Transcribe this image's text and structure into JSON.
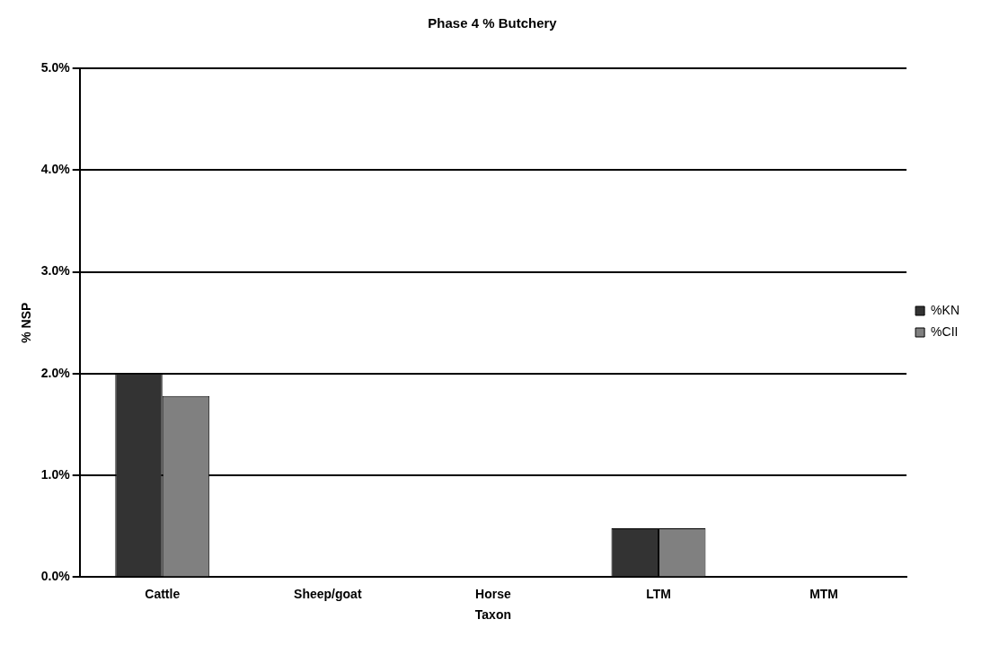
{
  "chart_data": {
    "type": "bar",
    "title": "Phase 4 % Butchery",
    "xlabel": "Taxon",
    "ylabel": "% NSP",
    "categories": [
      "Cattle",
      "Sheep/goat",
      "Horse",
      "LTM",
      "MTM"
    ],
    "series": [
      {
        "name": "%KN",
        "color": "#333333",
        "values": [
          2.0,
          0,
          0,
          0.48,
          0
        ]
      },
      {
        "name": "%CII",
        "color": "#808080",
        "values": [
          1.78,
          0,
          0,
          0.48,
          0
        ]
      }
    ],
    "ylim": [
      0,
      5
    ],
    "yticks": [
      {
        "value": 0,
        "label": "0.0%"
      },
      {
        "value": 1,
        "label": "1.0%"
      },
      {
        "value": 2,
        "label": "2.0%"
      },
      {
        "value": 3,
        "label": "3.0%"
      },
      {
        "value": 4,
        "label": "4.0%"
      },
      {
        "value": 5,
        "label": "5.0%"
      }
    ],
    "grid": "y",
    "legend": "right"
  }
}
